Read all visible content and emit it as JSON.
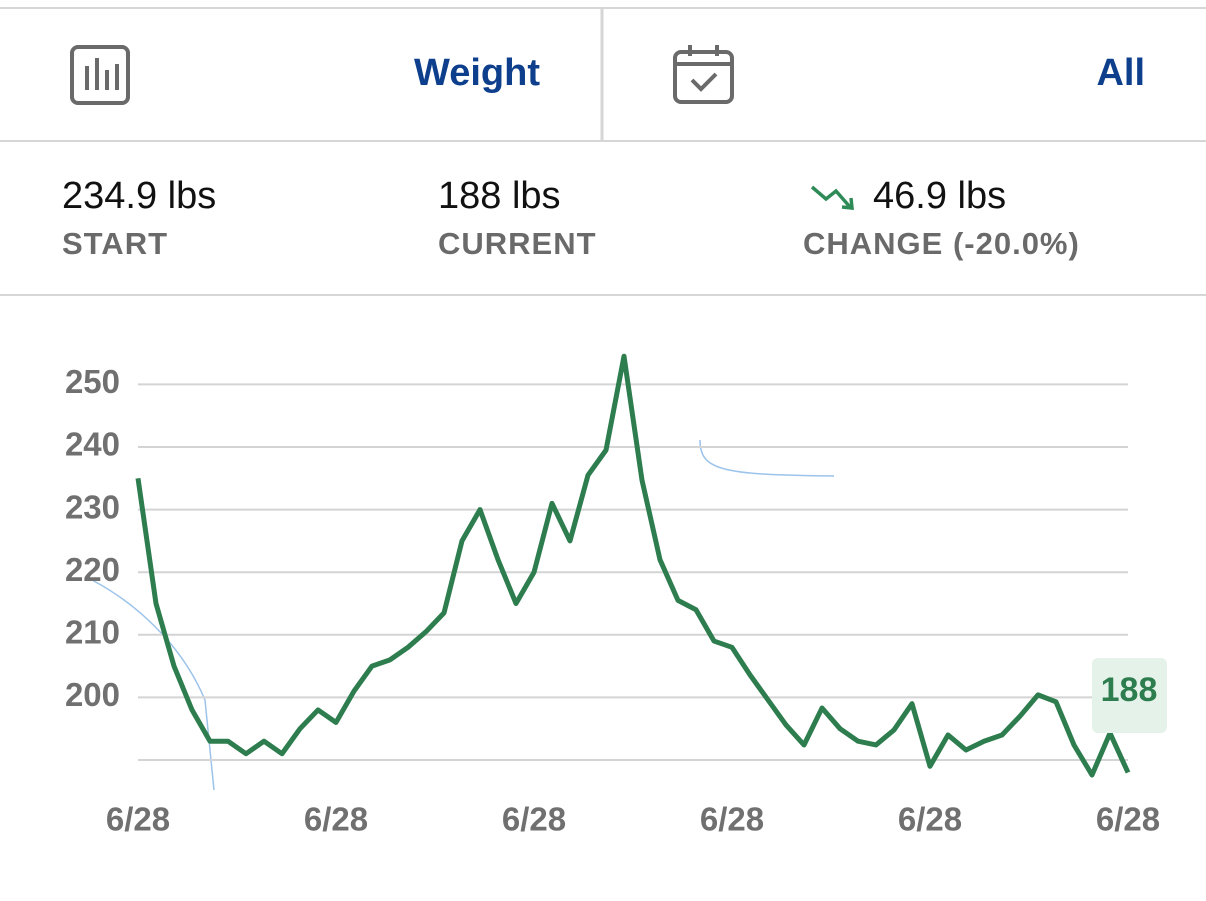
{
  "header": {
    "metric": "Weight",
    "range": "All"
  },
  "stats": [
    {
      "value": "234.9 lbs",
      "label": "START"
    },
    {
      "value": "188 lbs",
      "label": "CURRENT"
    },
    {
      "value": "46.9 lbs",
      "label": "CHANGE (-20.0%)"
    }
  ],
  "chart_data": {
    "type": "line",
    "xtick_labels": [
      "6/28",
      "6/28",
      "6/28",
      "6/28",
      "6/28",
      "6/28"
    ],
    "series": [
      {
        "name": "Weight",
        "color": "#2e7d4f",
        "values": [
          235,
          215,
          205,
          198,
          193,
          193,
          191,
          193,
          191,
          195,
          198,
          196,
          201,
          205,
          206,
          208,
          210.5,
          213.5,
          225,
          230,
          222,
          215,
          220,
          231,
          225,
          235.5,
          239.5,
          254.5,
          234.7,
          222,
          215.5,
          214,
          209,
          208,
          203.6,
          199.6,
          195.6,
          192.4,
          198.3,
          195,
          193,
          192.4,
          194.8,
          199,
          189,
          194,
          191.6,
          193,
          194,
          197,
          200.4,
          199.3,
          192.4,
          187.6,
          194.3,
          188
        ]
      }
    ],
    "ylim": [
      186,
      256
    ],
    "yticks": [
      {
        "value": 190,
        "label": null
      },
      200,
      210,
      220,
      230,
      240,
      250
    ],
    "grid": true
  }
}
